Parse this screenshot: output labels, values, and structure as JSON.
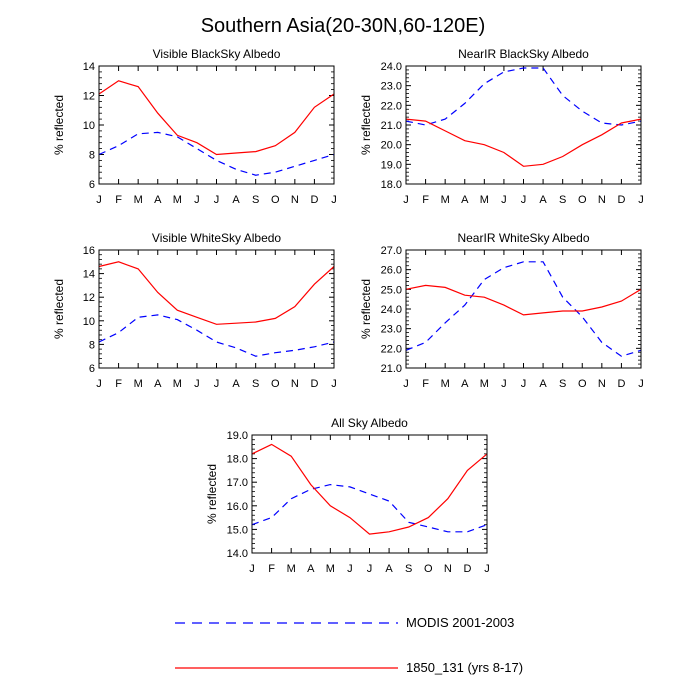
{
  "title": "Southern Asia(20-30N,60-120E)",
  "months": [
    "J",
    "F",
    "M",
    "A",
    "M",
    "J",
    "J",
    "A",
    "S",
    "O",
    "N",
    "D",
    "J"
  ],
  "ylabel": "% reflected",
  "legend": {
    "modis": "MODIS 2001-2003",
    "model": "1850_131 (yrs 8-17)"
  },
  "colors": {
    "modis": "#0000ff",
    "model": "#ff0000"
  },
  "chart_data": [
    {
      "type": "line",
      "title": "Visible BlackSky Albedo",
      "ylabel": "% reflected",
      "ylim": [
        6,
        14
      ],
      "yticks": [
        6,
        8,
        10,
        12,
        14
      ],
      "ytick_labels": [
        "6",
        "8",
        "10",
        "12",
        "14"
      ],
      "categories": [
        "J",
        "F",
        "M",
        "A",
        "M",
        "J",
        "J",
        "A",
        "S",
        "O",
        "N",
        "D",
        "J"
      ],
      "series": [
        {
          "name": "MODIS 2001-2003",
          "style": "dashed",
          "values": [
            8.0,
            8.6,
            9.4,
            9.5,
            9.2,
            8.4,
            7.6,
            7.0,
            6.6,
            6.8,
            7.2,
            7.6,
            8.0
          ]
        },
        {
          "name": "1850_131 (yrs 8-17)",
          "style": "solid",
          "values": [
            12.1,
            13.0,
            12.6,
            10.8,
            9.3,
            8.8,
            8.0,
            8.1,
            8.2,
            8.6,
            9.5,
            11.2,
            12.1
          ]
        }
      ]
    },
    {
      "type": "line",
      "title": "NearIR BlackSky Albedo",
      "ylabel": "% reflected",
      "ylim": [
        18,
        24
      ],
      "yticks": [
        18,
        19,
        20,
        21,
        22,
        23,
        24
      ],
      "ytick_labels": [
        "18.0",
        "19.0",
        "20.0",
        "21.0",
        "22.0",
        "23.0",
        "24.0"
      ],
      "categories": [
        "J",
        "F",
        "M",
        "A",
        "M",
        "J",
        "J",
        "A",
        "S",
        "O",
        "N",
        "D",
        "J"
      ],
      "series": [
        {
          "name": "MODIS 2001-2003",
          "style": "dashed",
          "values": [
            21.2,
            21.0,
            21.3,
            22.1,
            23.1,
            23.7,
            23.9,
            23.9,
            22.5,
            21.7,
            21.1,
            21.0,
            21.2
          ]
        },
        {
          "name": "1850_131 (yrs 8-17)",
          "style": "solid",
          "values": [
            21.3,
            21.2,
            20.7,
            20.2,
            20.0,
            19.6,
            18.9,
            19.0,
            19.4,
            20.0,
            20.5,
            21.1,
            21.3
          ]
        }
      ]
    },
    {
      "type": "line",
      "title": "Visible WhiteSky Albedo",
      "ylabel": "% reflected",
      "ylim": [
        6,
        16
      ],
      "yticks": [
        6,
        8,
        10,
        12,
        14,
        16
      ],
      "ytick_labels": [
        "6",
        "8",
        "10",
        "12",
        "14",
        "16"
      ],
      "categories": [
        "J",
        "F",
        "M",
        "A",
        "M",
        "J",
        "J",
        "A",
        "S",
        "O",
        "N",
        "D",
        "J"
      ],
      "series": [
        {
          "name": "MODIS 2001-2003",
          "style": "dashed",
          "values": [
            8.2,
            9.0,
            10.3,
            10.5,
            10.1,
            9.2,
            8.2,
            7.7,
            7.0,
            7.3,
            7.5,
            7.8,
            8.2
          ]
        },
        {
          "name": "1850_131 (yrs 8-17)",
          "style": "solid",
          "values": [
            14.6,
            15.0,
            14.4,
            12.4,
            10.9,
            10.3,
            9.7,
            9.8,
            9.9,
            10.2,
            11.2,
            13.1,
            14.6
          ]
        }
      ]
    },
    {
      "type": "line",
      "title": "NearIR WhiteSky Albedo",
      "ylabel": "% reflected",
      "ylim": [
        21,
        27
      ],
      "yticks": [
        21,
        22,
        23,
        24,
        25,
        26,
        27
      ],
      "ytick_labels": [
        "21.0",
        "22.0",
        "23.0",
        "24.0",
        "25.0",
        "26.0",
        "27.0"
      ],
      "categories": [
        "J",
        "F",
        "M",
        "A",
        "M",
        "J",
        "J",
        "A",
        "S",
        "O",
        "N",
        "D",
        "J"
      ],
      "series": [
        {
          "name": "MODIS 2001-2003",
          "style": "dashed",
          "values": [
            21.9,
            22.3,
            23.3,
            24.2,
            25.5,
            26.1,
            26.4,
            26.4,
            24.6,
            23.6,
            22.3,
            21.6,
            21.9
          ]
        },
        {
          "name": "1850_131 (yrs 8-17)",
          "style": "solid",
          "values": [
            25.0,
            25.2,
            25.1,
            24.7,
            24.6,
            24.2,
            23.7,
            23.8,
            23.9,
            23.9,
            24.1,
            24.4,
            25.0
          ]
        }
      ]
    },
    {
      "type": "line",
      "title": "All Sky Albedo",
      "ylabel": "% reflected",
      "ylim": [
        14,
        19
      ],
      "yticks": [
        14,
        15,
        16,
        17,
        18,
        19
      ],
      "ytick_labels": [
        "14.0",
        "15.0",
        "16.0",
        "17.0",
        "18.0",
        "19.0"
      ],
      "categories": [
        "J",
        "F",
        "M",
        "A",
        "M",
        "J",
        "J",
        "A",
        "S",
        "O",
        "N",
        "D",
        "J"
      ],
      "series": [
        {
          "name": "MODIS 2001-2003",
          "style": "dashed",
          "values": [
            15.2,
            15.5,
            16.3,
            16.7,
            16.9,
            16.8,
            16.5,
            16.2,
            15.3,
            15.1,
            14.9,
            14.9,
            15.2
          ]
        },
        {
          "name": "1850_131 (yrs 8-17)",
          "style": "solid",
          "values": [
            18.2,
            18.6,
            18.1,
            16.9,
            16.0,
            15.5,
            14.8,
            14.9,
            15.1,
            15.5,
            16.3,
            17.5,
            18.2
          ]
        }
      ]
    }
  ]
}
